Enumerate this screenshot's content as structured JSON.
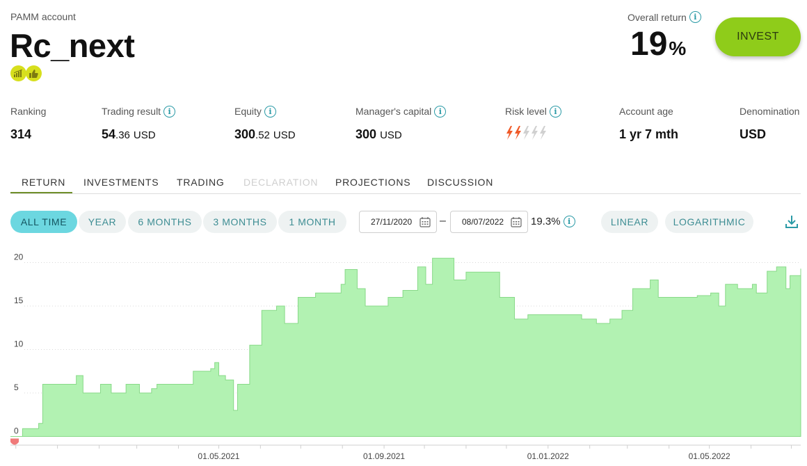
{
  "header": {
    "label": "PAMM account",
    "account_name": "Rc_next",
    "badges": [
      "trading-chart-icon",
      "thumbs-up-icon"
    ]
  },
  "overall_return": {
    "label": "Overall return",
    "value": "19",
    "unit": "%"
  },
  "invest_button": {
    "label": "INVEST"
  },
  "stats": {
    "ranking": {
      "label": "Ranking",
      "value": "314"
    },
    "trading_result": {
      "label": "Trading result",
      "int": "54",
      "dec": ".36",
      "currency": "USD"
    },
    "equity": {
      "label": "Equity",
      "int": "300",
      "dec": ".52",
      "currency": "USD"
    },
    "managers_capital": {
      "label": "Manager's capital",
      "int": "300",
      "currency": "USD"
    },
    "risk_level": {
      "label": "Risk level",
      "level": 2,
      "max": 5
    },
    "account_age": {
      "label": "Account age",
      "value": "1 yr 7 mth"
    },
    "denomination": {
      "label": "Denomination",
      "value": "USD"
    }
  },
  "tabs": [
    {
      "label": "RETURN",
      "active": true,
      "disabled": false
    },
    {
      "label": "INVESTMENTS",
      "active": false,
      "disabled": false
    },
    {
      "label": "TRADING",
      "active": false,
      "disabled": false
    },
    {
      "label": "DECLARATION",
      "active": false,
      "disabled": true
    },
    {
      "label": "PROJECTIONS",
      "active": false,
      "disabled": false
    },
    {
      "label": "DISCUSSION",
      "active": false,
      "disabled": false
    }
  ],
  "periods": [
    "ALL TIME",
    "YEAR",
    "6 MONTHS",
    "3 MONTHS",
    "1 MONTH"
  ],
  "active_period": "ALL TIME",
  "date_from": "27/11/2020",
  "date_to": "08/07/2022",
  "date_separator": "–",
  "range_return": "19.3%",
  "scales": [
    "LINEAR",
    "LOGARITHMIC"
  ],
  "colors": {
    "accent": "#6cd7e0",
    "invest": "#8fcc1a",
    "area_fill": "#b2f2b2",
    "area_line": "#88d988",
    "risk_active": "#f05a28",
    "risk_inactive": "#d0d0d0"
  },
  "chart_data": {
    "type": "area",
    "x_start": "2020-11-27",
    "x_end": "2022-07-08",
    "y_ticks": [
      0,
      5,
      10,
      15,
      20
    ],
    "ylim": [
      -1,
      21
    ],
    "x_ticks": [
      "01.05.2021",
      "01.09.2021",
      "01.01.2022",
      "01.05.2022"
    ],
    "x_tick_dates": [
      "2021-05-01",
      "2021-09-01",
      "2022-01-01",
      "2022-05-01"
    ],
    "grid": true,
    "series": [
      {
        "points": [
          [
            "2020-11-27",
            0
          ],
          [
            "2020-12-06",
            0.9
          ],
          [
            "2020-12-18",
            1.5
          ],
          [
            "2020-12-21",
            6.0
          ],
          [
            "2021-01-11",
            6.0
          ],
          [
            "2021-01-15",
            7.0
          ],
          [
            "2021-01-20",
            5.0
          ],
          [
            "2021-02-02",
            6.0
          ],
          [
            "2021-02-10",
            5.0
          ],
          [
            "2021-02-21",
            6.0
          ],
          [
            "2021-03-03",
            5.0
          ],
          [
            "2021-03-12",
            5.5
          ],
          [
            "2021-03-16",
            6.0
          ],
          [
            "2021-04-10",
            6.0
          ],
          [
            "2021-04-12",
            7.5
          ],
          [
            "2021-04-25",
            7.8
          ],
          [
            "2021-04-28",
            8.5
          ],
          [
            "2021-05-01",
            7.0
          ],
          [
            "2021-05-06",
            6.5
          ],
          [
            "2021-05-12",
            3.0
          ],
          [
            "2021-05-15",
            6.0
          ],
          [
            "2021-05-24",
            10.5
          ],
          [
            "2021-06-02",
            14.5
          ],
          [
            "2021-06-13",
            15.0
          ],
          [
            "2021-06-19",
            13.0
          ],
          [
            "2021-06-29",
            16.0
          ],
          [
            "2021-07-12",
            16.5
          ],
          [
            "2021-07-31",
            17.5
          ],
          [
            "2021-08-03",
            19.2
          ],
          [
            "2021-08-12",
            17.0
          ],
          [
            "2021-08-18",
            15.0
          ],
          [
            "2021-09-04",
            16.0
          ],
          [
            "2021-09-15",
            16.8
          ],
          [
            "2021-09-26",
            19.5
          ],
          [
            "2021-10-02",
            17.5
          ],
          [
            "2021-10-07",
            20.5
          ],
          [
            "2021-10-20",
            20.5
          ],
          [
            "2021-10-23",
            18.0
          ],
          [
            "2021-11-01",
            18.9
          ],
          [
            "2021-11-20",
            18.9
          ],
          [
            "2021-11-26",
            16.0
          ],
          [
            "2021-12-07",
            13.5
          ],
          [
            "2021-12-17",
            14.0
          ],
          [
            "2022-01-18",
            14.0
          ],
          [
            "2022-01-26",
            13.5
          ],
          [
            "2022-02-06",
            13.0
          ],
          [
            "2022-02-16",
            13.5
          ],
          [
            "2022-02-25",
            14.5
          ],
          [
            "2022-03-05",
            17.0
          ],
          [
            "2022-03-10",
            17.0
          ],
          [
            "2022-03-18",
            18.0
          ],
          [
            "2022-03-24",
            16.0
          ],
          [
            "2022-04-22",
            16.2
          ],
          [
            "2022-05-02",
            16.5
          ],
          [
            "2022-05-08",
            15.0
          ],
          [
            "2022-05-13",
            17.5
          ],
          [
            "2022-05-22",
            17.0
          ],
          [
            "2022-06-02",
            17.5
          ],
          [
            "2022-06-05",
            16.5
          ],
          [
            "2022-06-13",
            19.0
          ],
          [
            "2022-06-20",
            19.5
          ],
          [
            "2022-06-27",
            17.0
          ],
          [
            "2022-06-30",
            18.5
          ],
          [
            "2022-07-08",
            19.3
          ]
        ]
      }
    ]
  }
}
